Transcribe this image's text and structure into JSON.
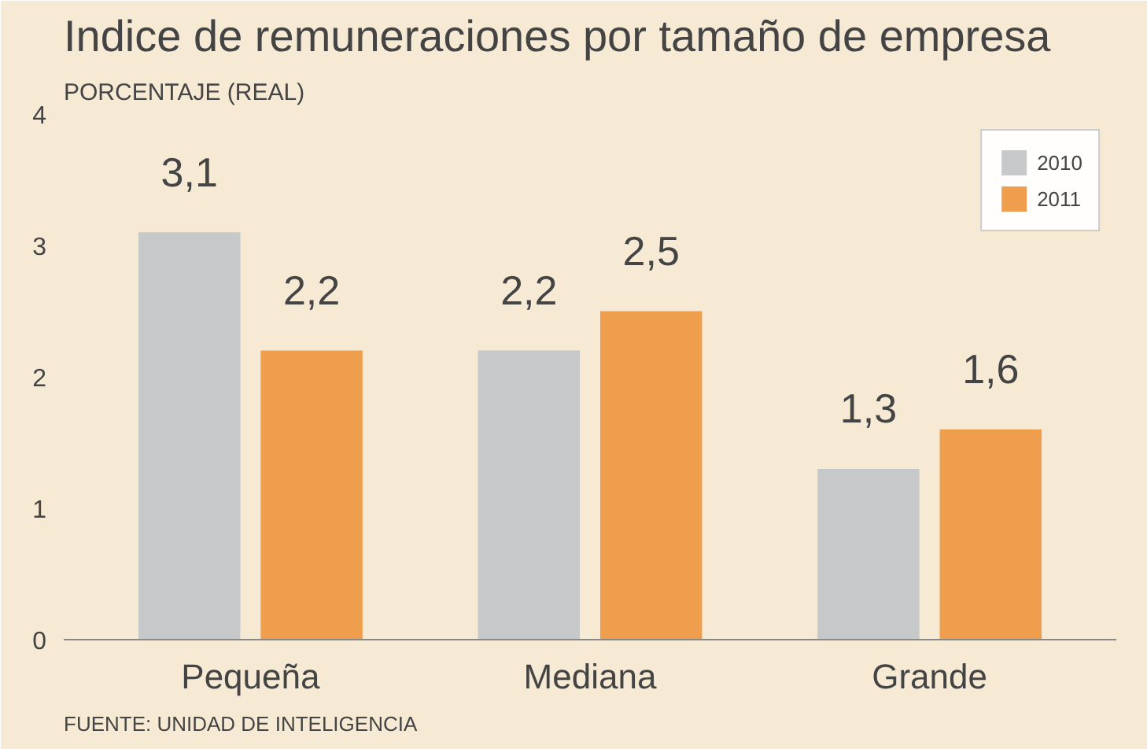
{
  "chart_data": {
    "type": "bar",
    "title": "Indice de remuneraciones por tamaño de empresa",
    "subtitle": "PORCENTAJE (REAL)",
    "categories": [
      "Pequeña",
      "Mediana",
      "Grande"
    ],
    "series": [
      {
        "name": "2010",
        "color": "#c6c8c9",
        "values": [
          3.1,
          2.2,
          1.3
        ],
        "value_labels": [
          "3,1",
          "2,2",
          "1,3"
        ]
      },
      {
        "name": "2011",
        "color": "#ef9e4e",
        "values": [
          2.2,
          2.5,
          1.6
        ],
        "value_labels": [
          "2,2",
          "2,5",
          "1,6"
        ]
      }
    ],
    "ylim": [
      0,
      4
    ],
    "yticks": [
      0,
      1,
      2,
      3,
      4
    ],
    "grid": false,
    "legend": "top right",
    "annotations": [
      "FUENTE: UNIDAD DE INTELIGENCIA"
    ]
  }
}
